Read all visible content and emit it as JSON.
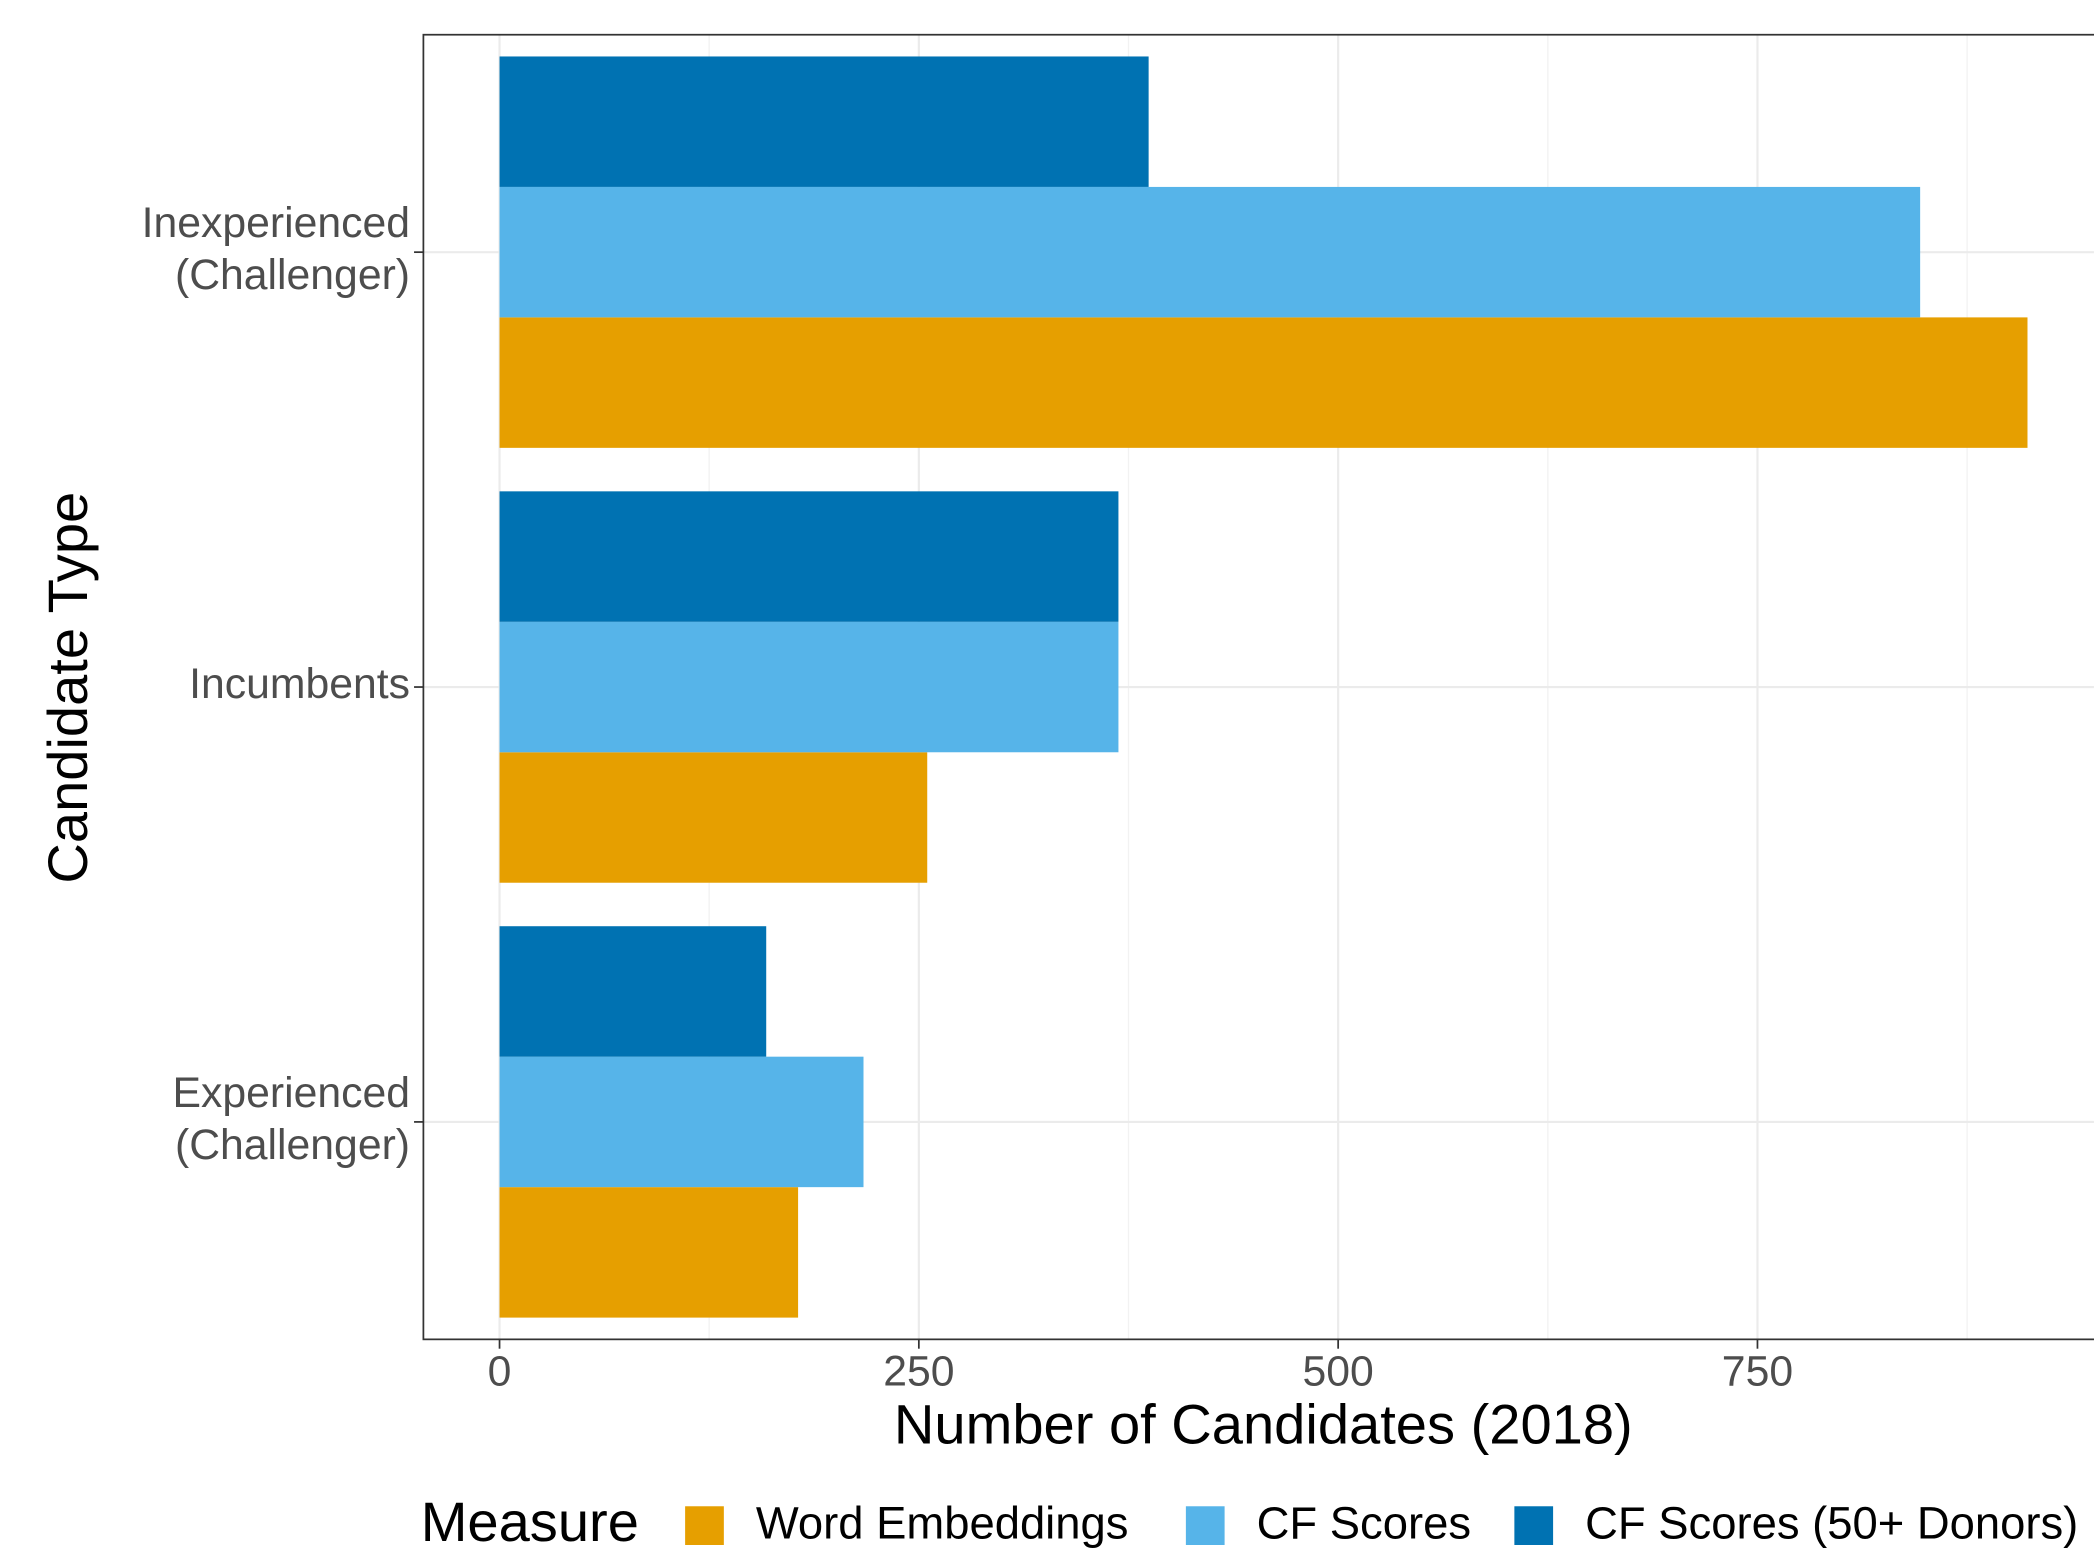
{
  "chart_data": {
    "type": "bar",
    "orientation": "horizontal",
    "categories": [
      "Experienced\n(Challenger)",
      "Incumbents",
      "Inexperienced\n(Challenger)"
    ],
    "series": [
      {
        "name": "Word Embeddings",
        "color": "#E69F00",
        "values": [
          178,
          255,
          911
        ]
      },
      {
        "name": "CF Scores",
        "color": "#56B4E9",
        "values": [
          217,
          369,
          847
        ]
      },
      {
        "name": "CF Scores (50+ Donors)",
        "color": "#0072B2",
        "values": [
          159,
          369,
          387
        ]
      }
    ],
    "xlabel": "Number of Candidates (2018)",
    "ylabel": "Candidate Type",
    "legend_title": "Measure",
    "legend_position": "bottom",
    "xlim": [
      -45.4,
      950.6
    ],
    "xticks": [
      0,
      250,
      500,
      750
    ],
    "xminor": [
      125,
      375,
      625,
      875
    ],
    "grid": true
  }
}
